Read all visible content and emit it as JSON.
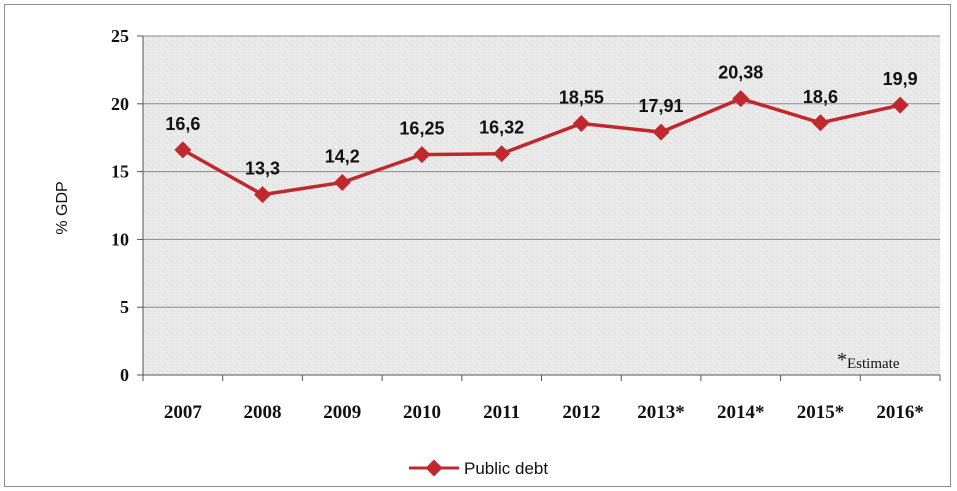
{
  "chart_data": {
    "type": "line",
    "categories": [
      "2007",
      "2008",
      "2009",
      "2010",
      "2011",
      "2012",
      "2013*",
      "2014*",
      "2015*",
      "2016*"
    ],
    "series": [
      {
        "name": "Public debt",
        "values": [
          16.6,
          13.3,
          14.2,
          16.25,
          16.32,
          18.55,
          17.91,
          20.38,
          18.6,
          19.9
        ],
        "labels": [
          "16,6",
          "13,3",
          "14,2",
          "16,25",
          "16,32",
          "18,55",
          "17,91",
          "20,38",
          "18,6",
          "19,9"
        ],
        "color": "#c0282d"
      }
    ],
    "ylabel": "% GDP",
    "ylim": [
      0,
      25
    ],
    "yticks": [
      "0",
      "5",
      "10",
      "15",
      "20",
      "25"
    ],
    "note_star": "*",
    "note_text": "Estimate",
    "grid": true,
    "legend": "bottom-center"
  }
}
